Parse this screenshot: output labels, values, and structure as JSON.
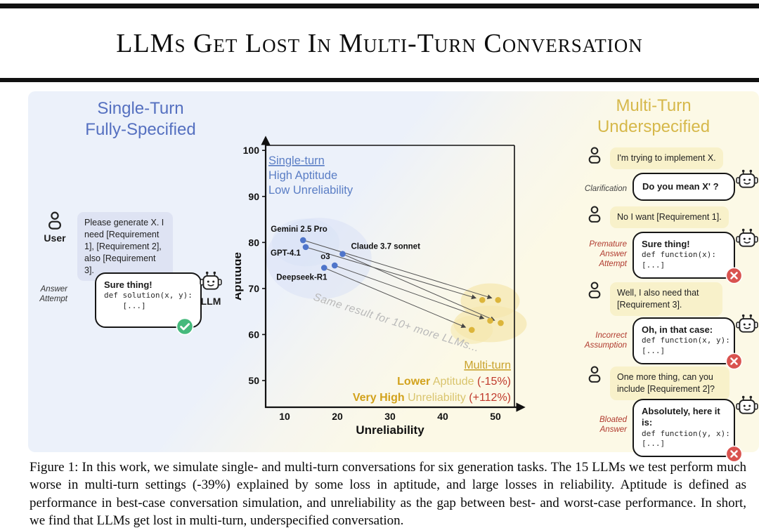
{
  "title": {
    "text": "LLMs Get Lost In Multi-Turn Conversation"
  },
  "caption": {
    "text": "Figure 1: In this work, we simulate single- and multi-turn conversations for six generation tasks. The 15 LLMs we test perform much worse in multi-turn settings (-39%) explained by some loss in aptitude, and large losses in reliability. Aptitude is defined as performance in best-case conversation simulation, and unreliability as the gap between best- and worst-case performance. In short, we find that LLMs get lost in multi-turn, underspecified conversation."
  },
  "colors": {
    "single_turn_blue": "#5570c0",
    "multi_turn_gold": "#d6b84a",
    "annotation_blue": "#5b7ec5",
    "annotation_gold": "#c9a22c",
    "gold_bold": "#d2a21c",
    "gold_light": "#d9c46d",
    "delta_red": "#c0392b",
    "point_blue": "#4f75ca",
    "point_gold": "#dcb53b",
    "error_red": "#d9534f",
    "success_green": "#45b97c",
    "user_bubble_blue": "#dee3f3",
    "user_bubble_yellow": "#f8f1ca"
  },
  "left_panel": {
    "heading_line1": "Single-Turn",
    "heading_line2": "Fully-Specified",
    "user_label": "User",
    "user_message": "Please generate X. I need [Requirement 1], [Requirement 2], also [Requirement 3].",
    "answer_label": "Answer Attempt",
    "answer": {
      "title": "Sure thing!",
      "code_line1": "def solution(x, y):",
      "code_line2": "    [...]"
    },
    "llm_label": "LLM"
  },
  "right_panel": {
    "heading_line1": "Multi-Turn",
    "heading_line2": "Underspecified",
    "chat": [
      {
        "type": "user",
        "text": "I'm trying to implement X."
      },
      {
        "type": "assistant",
        "label": "Clarification",
        "title": "Do you mean X' ?"
      },
      {
        "type": "user",
        "text": "No I want [Requirement 1]."
      },
      {
        "type": "assistant",
        "label": "Premature Answer Attempt",
        "title": "Sure thing!",
        "code": [
          "def function(x):",
          "[...]"
        ]
      },
      {
        "type": "user",
        "text": "Well, I also need that [Requirement 3]."
      },
      {
        "type": "assistant",
        "label": "Incorrect Assumption",
        "title": "Oh, in that case:",
        "code": [
          "def function(x, y):",
          "[...]"
        ]
      },
      {
        "type": "user",
        "text": "One more thing, can you include [Requirement 2]?"
      },
      {
        "type": "assistant",
        "label": "Bloated Answer",
        "title": "Absolutely, here it is:",
        "code": [
          "def function(y, x):",
          "[...]"
        ]
      }
    ]
  },
  "chart_data": {
    "type": "scatter",
    "title": "",
    "xlabel": "Unreliability",
    "ylabel": "Aptitude",
    "xlim": [
      6.4,
      53.6
    ],
    "ylim": [
      44.2,
      101.1
    ],
    "xticks": [
      10,
      20,
      30,
      40,
      50
    ],
    "yticks": [
      50,
      60,
      70,
      80,
      90,
      100
    ],
    "grid": false,
    "legend": "none",
    "series_colors": {
      "single_turn": "#4f75ca",
      "multi_turn": "#dcb53b"
    },
    "models": [
      {
        "name": "Gemini 2.5 Pro",
        "single_turn": {
          "x": 13.5,
          "y": 80.5
        },
        "multi_turn": {
          "x": 50.5,
          "y": 67.5
        }
      },
      {
        "name": "GPT-4.1",
        "single_turn": {
          "x": 14.0,
          "y": 79.0
        },
        "multi_turn": {
          "x": 47.5,
          "y": 67.5
        }
      },
      {
        "name": "Claude 3.7 sonnet",
        "single_turn": {
          "x": 21.0,
          "y": 77.5
        },
        "multi_turn": {
          "x": 51.0,
          "y": 62.5
        }
      },
      {
        "name": "o3",
        "single_turn": {
          "x": 19.5,
          "y": 75.0
        },
        "multi_turn": {
          "x": 49.0,
          "y": 63.0
        }
      },
      {
        "name": "Deepseek-R1",
        "single_turn": {
          "x": 17.5,
          "y": 74.5
        },
        "multi_turn": {
          "x": 45.5,
          "y": 61.0
        }
      }
    ],
    "annotations": {
      "single_turn_lines": [
        "Single-turn",
        "High Aptitude",
        "Low Unreliability"
      ],
      "multi_turn_title": "Multi-turn",
      "multi_turn_lines": [
        {
          "bold": "Lower",
          "rest": " Aptitude ",
          "delta": "(-15%)"
        },
        {
          "bold": "Very High",
          "rest": " Unreliability ",
          "delta": "(+112%)"
        }
      ],
      "note": "Same result for 10+ more LLMs..."
    }
  }
}
